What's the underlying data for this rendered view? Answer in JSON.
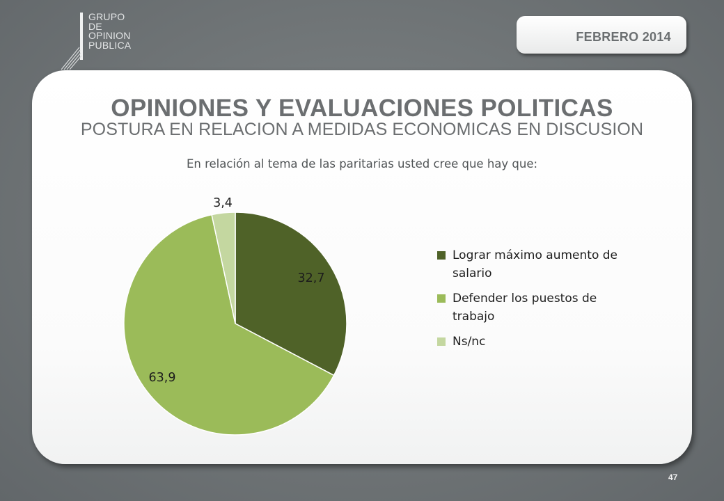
{
  "logo": {
    "lines": [
      "GRUPO",
      "DE",
      "OPINION",
      "PUBLICA"
    ]
  },
  "header": {
    "date": "FEBRERO 2014"
  },
  "slide": {
    "title": "OPINIONES Y EVALUACIONES POLITICAS",
    "subtitle": "POSTURA EN RELACION A MEDIDAS ECONOMICAS EN DISCUSION",
    "question": "En relación al tema de las paritarias usted cree que hay que:"
  },
  "chart_data": {
    "type": "pie",
    "slices": [
      {
        "label": "Lograr máximo aumento de salario",
        "value": 32.7,
        "display": "32,7",
        "color": "#4f6228"
      },
      {
        "label": "Defender los puestos de trabajo",
        "value": 63.9,
        "display": "63,9",
        "color": "#9bbb59"
      },
      {
        "label": "Ns/nc",
        "value": 3.4,
        "display": "3,4",
        "color": "#c4d7a0"
      }
    ],
    "legend_position": "right",
    "start": "12 o'clock, clockwise"
  },
  "footer": {
    "page": "47"
  }
}
